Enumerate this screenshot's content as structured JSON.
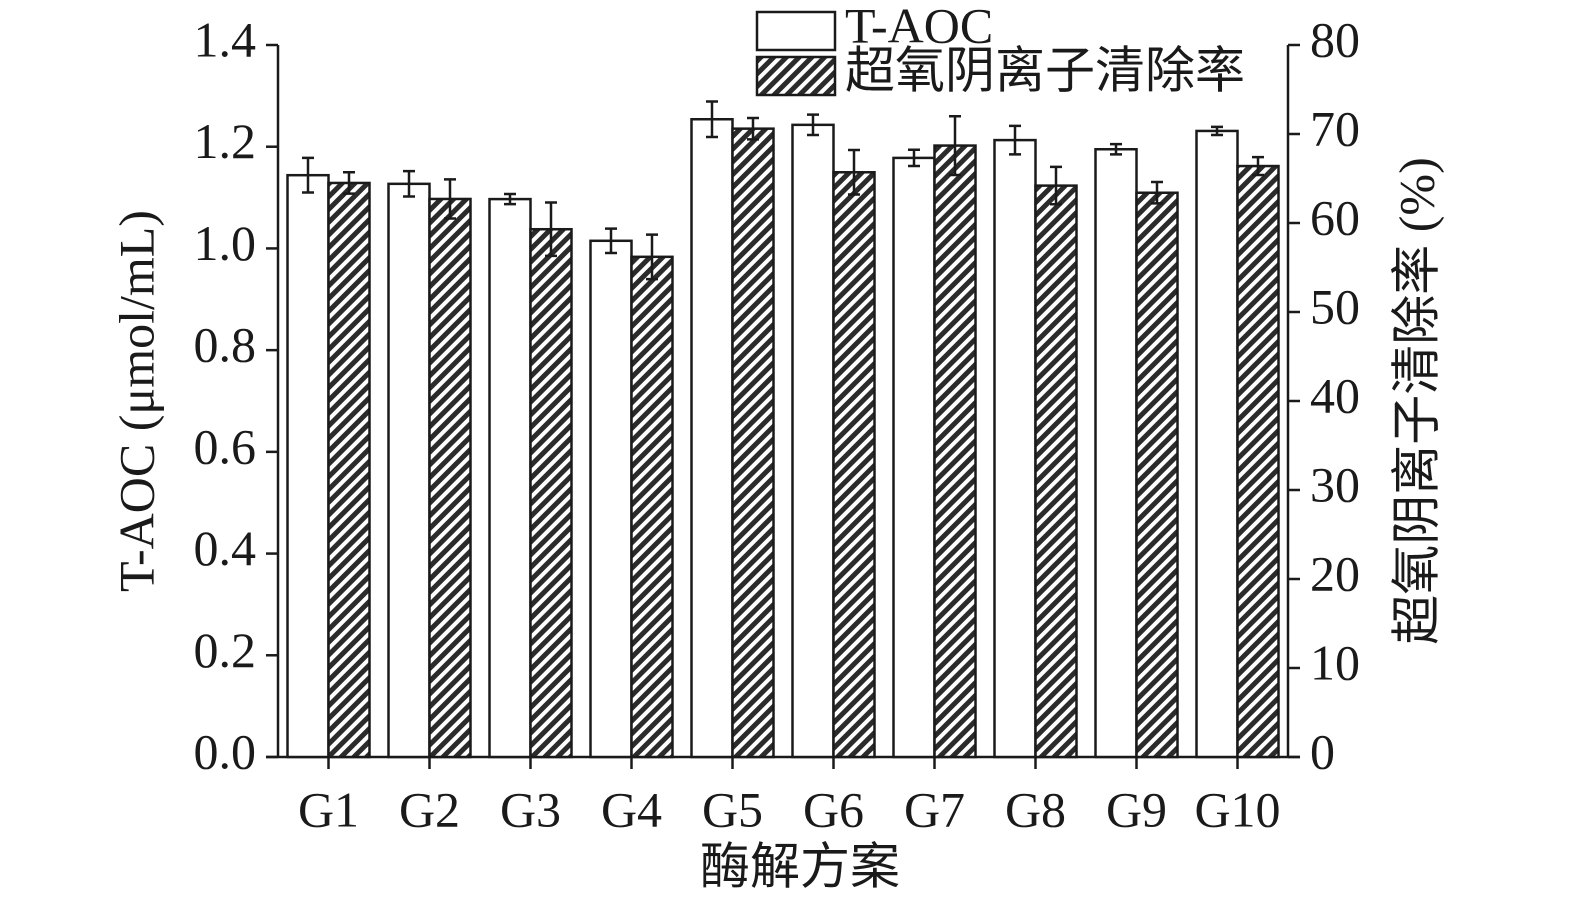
{
  "chart_data": {
    "type": "bar",
    "categories": [
      "G1",
      "G2",
      "G3",
      "G4",
      "G5",
      "G6",
      "G7",
      "G8",
      "G9",
      "G10"
    ],
    "x_label": "酶解方案",
    "y_label": "T-AOC (μmol/mL)",
    "y2_label": "超氧阴离子清除率 (%)",
    "series": [
      {
        "name": "T-AOC",
        "color": "#ffffff",
        "hatch": false,
        "values": [
          1.144,
          1.127,
          1.097,
          1.015,
          1.254,
          1.243,
          1.178,
          1.213,
          1.195,
          1.231
        ],
        "errors": [
          0.034,
          0.025,
          0.01,
          0.024,
          0.035,
          0.02,
          0.016,
          0.028,
          0.01,
          0.008
        ]
      },
      {
        "name": "超氧阴离子清除率",
        "color": "#2b2b2b",
        "hatch": true,
        "axis": "y2",
        "values": [
          64.5,
          62.7,
          59.3,
          56.2,
          70.6,
          65.7,
          68.7,
          64.2,
          63.4,
          66.4
        ],
        "errors": [
          1.2,
          2.2,
          3.0,
          2.5,
          1.2,
          2.5,
          3.3,
          2.1,
          1.2,
          1.0
        ]
      }
    ],
    "ylim": [
      0,
      1.4
    ],
    "yticks": [
      {
        "value": 0,
        "label": "0.0"
      },
      {
        "value": 0.2,
        "label": "0.2"
      },
      {
        "value": 0.4,
        "label": "0.4"
      },
      {
        "value": 0.6,
        "label": "0.6"
      },
      {
        "value": 0.8,
        "label": "0.8"
      },
      {
        "value": 1,
        "label": "1.0"
      },
      {
        "value": 1.2,
        "label": "1.2"
      },
      {
        "value": 1.4,
        "label": "1.4"
      }
    ],
    "y2lim": [
      0,
      80
    ],
    "y2ticks": [
      0,
      10,
      20,
      30,
      40,
      50,
      60,
      70,
      80
    ],
    "grid": false,
    "legend": "top-right"
  }
}
